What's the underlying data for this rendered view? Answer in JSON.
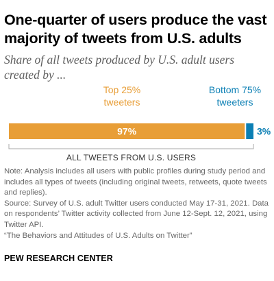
{
  "title": "One-quarter of users produce the vast majority of tweets from U.S. adults",
  "subtitle": "Share of all tweets produced by U.S. adult users created by ...",
  "chart_data": {
    "type": "bar",
    "orientation": "horizontal-stacked",
    "total_label": "ALL TWEETS FROM U.S. USERS",
    "series": [
      {
        "name": "Top 25% tweeters",
        "name_lines": [
          "Top 25%",
          "tweeters"
        ],
        "value": 97,
        "value_label": "97%",
        "color": "#e89e37"
      },
      {
        "name": "Bottom 75% tweeters",
        "name_lines": [
          "Bottom 75%",
          "tweeters"
        ],
        "value": 3,
        "value_label": "3%",
        "color": "#0b7fb4"
      }
    ],
    "xlim": [
      0,
      100
    ]
  },
  "notes": [
    "Note: Analysis includes all users with public profiles during study period and includes all types of tweets (including original tweets, retweets, quote tweets and replies).",
    "Source: Survey of U.S. adult Twitter users conducted May 17-31, 2021. Data on respondents’ Twitter activity collected from June 12-Sept. 12, 2021, using Twitter API.",
    "“The Behaviors and Attitudes of U.S. Adults on Twitter”"
  ],
  "brand": "PEW RESEARCH CENTER"
}
